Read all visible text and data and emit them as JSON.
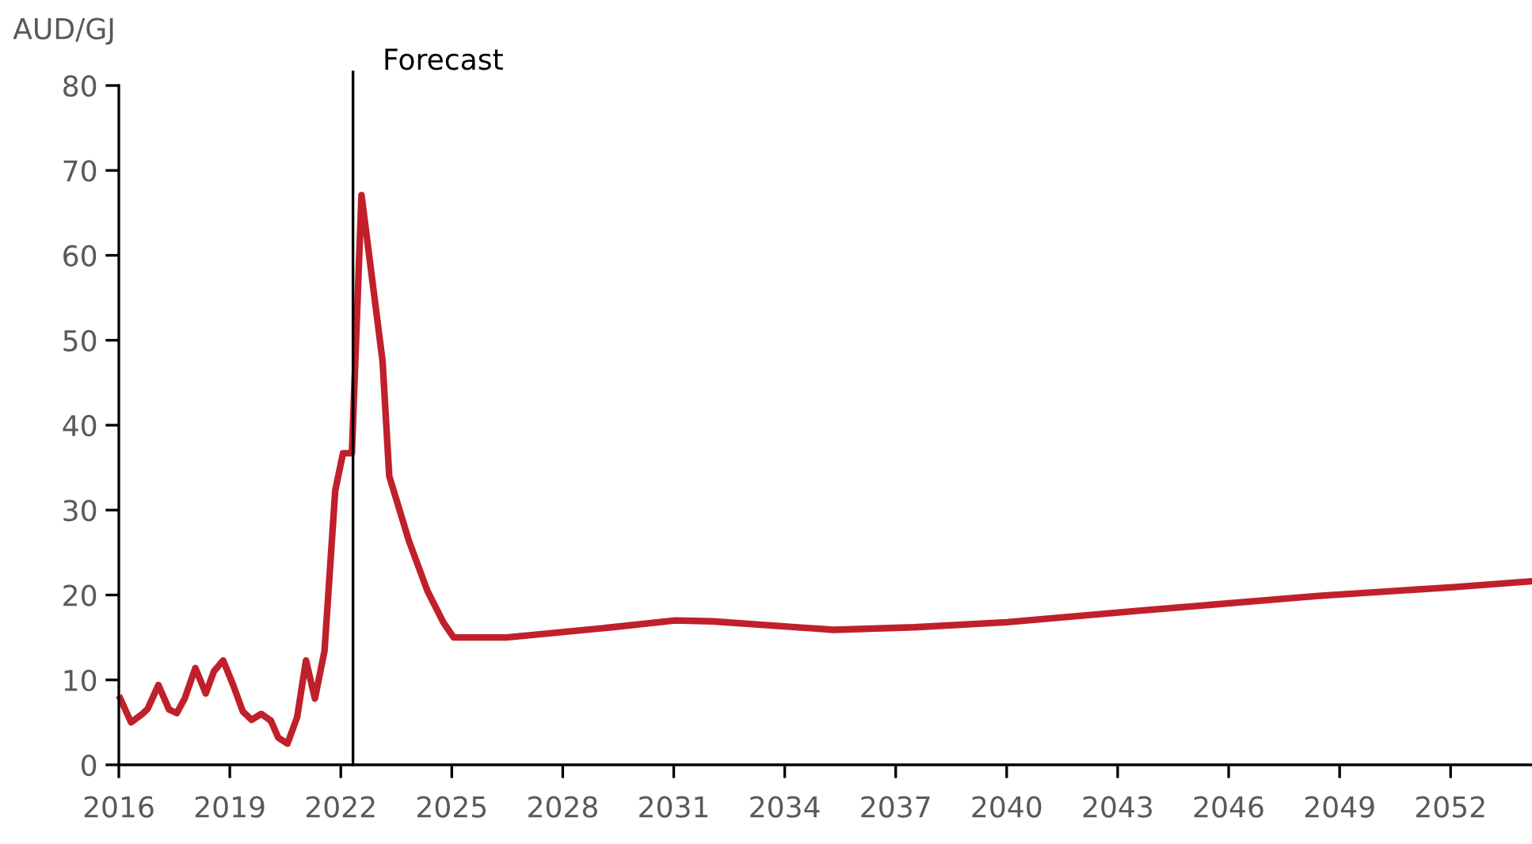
{
  "chart_data": {
    "type": "line",
    "ylabel": "AUD/GJ",
    "x": [
      2016.04,
      2016.33,
      2016.64,
      2016.78,
      2017.07,
      2017.36,
      2017.57,
      2017.78,
      2018.07,
      2018.35,
      2018.57,
      2018.82,
      2019.09,
      2019.35,
      2019.59,
      2019.85,
      2020.11,
      2020.31,
      2020.56,
      2020.82,
      2021.06,
      2021.3,
      2021.56,
      2021.85,
      2022.06,
      2022.3,
      2022.56,
      2023.13,
      2023.31,
      2023.84,
      2024.34,
      2024.77,
      2025.05,
      2026.48,
      2029.33,
      2031.04,
      2032.04,
      2035.32,
      2037.5,
      2040.0,
      2043.45,
      2048.43,
      2052.0,
      2054.14
    ],
    "series": [
      {
        "color": "#c0202a",
        "values": [
          7.8,
          5.0,
          6.0,
          6.6,
          9.4,
          6.5,
          6.1,
          7.8,
          11.4,
          8.4,
          11.0,
          12.3,
          9.4,
          6.3,
          5.3,
          6.0,
          5.2,
          3.2,
          2.5,
          5.6,
          12.3,
          7.8,
          13.4,
          32.3,
          36.7,
          36.7,
          67.1,
          47.5,
          34.0,
          26.4,
          20.5,
          16.8,
          15.0,
          15.0,
          16.2,
          17.0,
          16.9,
          15.9,
          16.2,
          16.8,
          18.1,
          19.9,
          20.9,
          21.6
        ]
      }
    ],
    "xlim": [
      2016,
      2054.2
    ],
    "xticks": [
      2016,
      2019,
      2022,
      2025,
      2028,
      2031,
      2034,
      2037,
      2040,
      2043,
      2046,
      2049,
      2052
    ],
    "ylim": [
      0,
      80
    ],
    "yticks": [
      0,
      10,
      20,
      30,
      40,
      50,
      60,
      70,
      80
    ],
    "ref_lines": [
      {
        "axis": "x",
        "value": 2022.33,
        "label": "Forecast",
        "color": "#000000"
      }
    ],
    "grid": false,
    "legend": false,
    "marker": "none",
    "line_style": "solid"
  }
}
